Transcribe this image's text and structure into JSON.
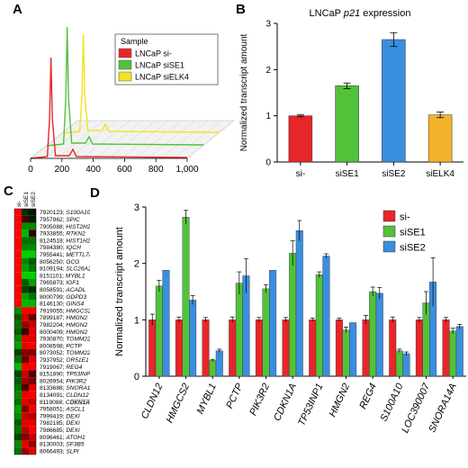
{
  "panels": {
    "a": "A",
    "b": "B",
    "c": "C",
    "d": "D"
  },
  "panel_a": {
    "legend_title": "Sample",
    "samples": [
      {
        "name": "LNCaP si-",
        "color": "#e8262a"
      },
      {
        "name": "LNCaP siSE1",
        "color": "#52c23a"
      },
      {
        "name": "LNCaP siELK4",
        "color": "#f2e320"
      }
    ],
    "x_ticks": [
      "0",
      "200",
      "400",
      "600",
      "800",
      "1,000"
    ]
  },
  "chart_data": [
    {
      "type": "bar",
      "title": "LNCaP p21 expression",
      "title_plain": "LNCaP ",
      "title_italic": "p21",
      "title_tail": " expression",
      "ylabel": "Normalized transcript amount",
      "ylim": [
        0,
        3
      ],
      "y_ticks": [
        "0",
        "1",
        "2",
        "3"
      ],
      "categories": [
        "si-",
        "siSE1",
        "siSE2",
        "siELK4"
      ],
      "values": [
        1.0,
        1.65,
        2.65,
        1.02
      ],
      "errors": [
        0.02,
        0.06,
        0.15,
        0.06
      ],
      "colors": [
        "#e8262a",
        "#52c23a",
        "#3a8ede",
        "#f2b32a"
      ]
    },
    {
      "type": "bar",
      "ylabel": "Normalized transcript amount",
      "ylim": [
        0,
        3
      ],
      "y_ticks": [
        "0",
        "1",
        "2",
        "3"
      ],
      "categories": [
        "CLDN12",
        "HMGCS2",
        "MYBL1",
        "PCTP",
        "PIK3R2",
        "CDKN1A",
        "TP53INP1",
        "HMGN2",
        "REG4",
        "S100A10",
        "LOC390007",
        "SNORA14A"
      ],
      "series": [
        {
          "name": "si-",
          "color": "#e8262a",
          "values": [
            1.0,
            1.0,
            1.0,
            1.0,
            1.0,
            1.0,
            1.0,
            1.0,
            1.0,
            1.0,
            1.0,
            1.0
          ],
          "errors": [
            0.1,
            0.05,
            0.04,
            0.05,
            0.04,
            0.04,
            0.03,
            0.03,
            0.08,
            0.05,
            0.04,
            0.04
          ]
        },
        {
          "name": "siSE1",
          "color": "#52c23a",
          "values": [
            1.6,
            2.82,
            0.28,
            1.65,
            1.55,
            2.18,
            1.8,
            0.82,
            1.5,
            0.45,
            1.3,
            0.8
          ],
          "errors": [
            0.1,
            0.12,
            0.02,
            0.2,
            0.07,
            0.22,
            0.05,
            0.05,
            0.08,
            0.03,
            0.2,
            0.05
          ]
        },
        {
          "name": "siSE2",
          "color": "#3a8ede",
          "values": [
            1.88,
            1.35,
            0.45,
            1.78,
            1.88,
            2.58,
            2.13,
            0.95,
            1.47,
            0.4,
            1.67,
            0.88
          ],
          "errors": [
            0.0,
            0.08,
            0.03,
            0.3,
            0.0,
            0.18,
            0.04,
            0.0,
            0.1,
            0.03,
            0.43,
            0.04
          ]
        }
      ],
      "legend": "top-right"
    }
  ],
  "heatmap": {
    "column_headers": [
      "si-",
      "siSE1",
      "siSE2"
    ],
    "rows": [
      {
        "id": "7920123;",
        "gene": "S100A10",
        "cells": [
          1,
          -0.2,
          -0.1
        ]
      },
      {
        "id": "7957962;",
        "gene": "SPIC",
        "cells": [
          1,
          0.3,
          -0.1
        ]
      },
      {
        "id": "7905088;",
        "gene": "HIST2H2AC",
        "cells": [
          1,
          -0.6,
          -0.6
        ]
      },
      {
        "id": "7933855;",
        "gene": "RTKN2",
        "cells": [
          1,
          -0.8,
          0.2
        ]
      },
      {
        "id": "8124518;",
        "gene": "HIST1H2AJ",
        "cells": [
          1,
          -0.5,
          -0.5
        ]
      },
      {
        "id": "7984380;",
        "gene": "IQCH",
        "cells": [
          1,
          -0.6,
          -0.6
        ]
      },
      {
        "id": "7955441;",
        "gene": "METTL7A",
        "cells": [
          1,
          -0.9,
          -0.9
        ]
      },
      {
        "id": "8056250;",
        "gene": "GCG",
        "cells": [
          1,
          -0.6,
          -0.4
        ]
      },
      {
        "id": "8109194;",
        "gene": "SLC26A2",
        "cells": [
          1,
          -0.7,
          -0.5
        ]
      },
      {
        "id": "8151101;",
        "gene": "MYBL1",
        "cells": [
          1,
          -0.9,
          -0.9
        ]
      },
      {
        "id": "7965873;",
        "gene": "IGF1",
        "cells": [
          1,
          -0.4,
          -0.7
        ]
      },
      {
        "id": "8058591;",
        "gene": "ACADL",
        "cells": [
          1,
          -0.3,
          -0.2
        ]
      },
      {
        "id": "8000799;",
        "gene": "GDPD3",
        "cells": [
          1,
          -0.7,
          -0.5
        ]
      },
      {
        "id": "8146130;",
        "gene": "GINS4",
        "cells": [
          1,
          -0.8,
          -0.8
        ]
      },
      {
        "id": "7919055;",
        "gene": "HMGCS2",
        "cells": [
          -0.6,
          1,
          1
        ]
      },
      {
        "id": "7899187;",
        "gene": "HMGN2",
        "cells": [
          -0.4,
          0.8,
          0.4
        ]
      },
      {
        "id": "7982204;",
        "gene": "HMGN2",
        "cells": [
          -0.5,
          0.6,
          0.8
        ]
      },
      {
        "id": "8000409;",
        "gene": "HMGN2",
        "cells": [
          -0.4,
          0.2,
          0.9
        ]
      },
      {
        "id": "7930870;",
        "gene": "TOMM22",
        "cells": [
          -0.6,
          0.9,
          0.9
        ]
      },
      {
        "id": "8008598;",
        "gene": "PCTP",
        "cells": [
          -0.7,
          0.9,
          1
        ]
      },
      {
        "id": "8073052;",
        "gene": "TOMM22",
        "cells": [
          -0.3,
          0.5,
          0.5
        ]
      },
      {
        "id": "7937952;",
        "gene": "OR51E1",
        "cells": [
          -0.5,
          0.4,
          0.9
        ]
      },
      {
        "id": "7919067;",
        "gene": "REG4",
        "cells": [
          -0.8,
          1,
          1
        ]
      },
      {
        "id": "8151890;",
        "gene": "TP53INP1",
        "cells": [
          -0.3,
          0.8,
          0.3
        ]
      },
      {
        "id": "8026954;",
        "gene": "PIK3R2",
        "cells": [
          -0.4,
          0.6,
          0.5
        ]
      },
      {
        "id": "8133688;",
        "gene": "SNORA14A",
        "cells": [
          -0.5,
          0.3,
          0.9
        ]
      },
      {
        "id": "8134091;",
        "gene": "CLDN12",
        "cells": [
          -0.6,
          0.9,
          1
        ]
      },
      {
        "id": "8119088;",
        "gene": "CDKN1A",
        "cells": [
          -0.5,
          0.9,
          0.8
        ]
      },
      {
        "id": "7958051;",
        "gene": "ASCL1",
        "cells": [
          -0.7,
          0.5,
          1
        ]
      },
      {
        "id": "7999419;",
        "gene": "DEXI",
        "cells": [
          -0.6,
          0.8,
          0.7
        ]
      },
      {
        "id": "7982185;",
        "gene": "DEXI",
        "cells": [
          -0.4,
          0.9,
          0.9
        ]
      },
      {
        "id": "7986685;",
        "gene": "DEXI",
        "cells": [
          -0.5,
          0.7,
          1
        ]
      },
      {
        "id": "8096461;",
        "gene": "ATOH1",
        "cells": [
          -0.3,
          0.5,
          0.8
        ]
      },
      {
        "id": "8130003;",
        "gene": "SF3B5",
        "cells": [
          -0.6,
          0.9,
          0.6
        ]
      },
      {
        "id": "8066493;",
        "gene": "SLPI",
        "cells": [
          -0.5,
          0.6,
          0.9
        ]
      }
    ],
    "highlight_gene": "CDKN1A"
  }
}
